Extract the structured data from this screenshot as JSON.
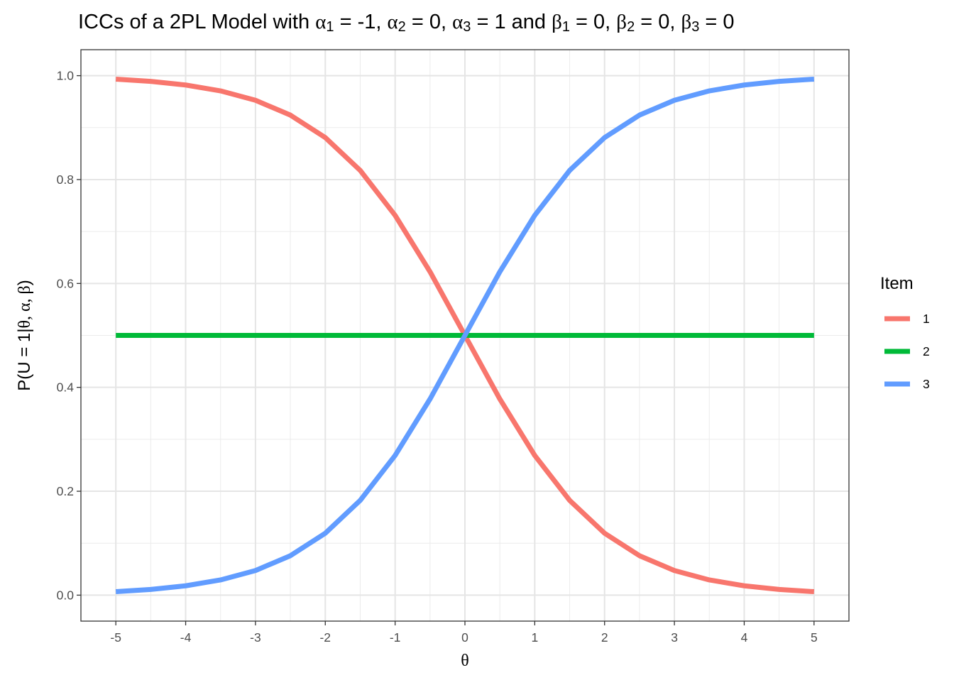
{
  "chart_data": {
    "type": "line",
    "title_parts": [
      {
        "t": "ICCs of a 2PL Model with ",
        "k": "n"
      },
      {
        "t": "α",
        "k": "g"
      },
      {
        "t": "1",
        "k": "s"
      },
      {
        "t": " = -1, ",
        "k": "n"
      },
      {
        "t": "α",
        "k": "g"
      },
      {
        "t": "2",
        "k": "s"
      },
      {
        "t": " = 0, ",
        "k": "n"
      },
      {
        "t": "α",
        "k": "g"
      },
      {
        "t": "3",
        "k": "s"
      },
      {
        "t": " = 1 and ",
        "k": "n"
      },
      {
        "t": "β",
        "k": "g"
      },
      {
        "t": "1",
        "k": "s"
      },
      {
        "t": " = 0, ",
        "k": "n"
      },
      {
        "t": "β",
        "k": "g"
      },
      {
        "t": "2",
        "k": "s"
      },
      {
        "t": " = 0, ",
        "k": "n"
      },
      {
        "t": "β",
        "k": "g"
      },
      {
        "t": "3",
        "k": "s"
      },
      {
        "t": " = 0",
        "k": "n"
      }
    ],
    "xlabel": "θ",
    "ylabel_parts": [
      {
        "t": "P(U = 1",
        "k": "n"
      },
      {
        "t": "|",
        "k": "n"
      },
      {
        "t": "θ, α, β",
        "k": "g"
      },
      {
        "t": ")",
        "k": "n"
      }
    ],
    "xlim": [
      -5.5,
      5.5
    ],
    "ylim": [
      -0.05,
      1.05
    ],
    "x_ticks": [
      -5,
      -4,
      -3,
      -2,
      -1,
      0,
      1,
      2,
      3,
      4,
      5
    ],
    "x_tick_labels": [
      "-5",
      "-4",
      "-3",
      "-2",
      "-1",
      "0",
      "1",
      "2",
      "3",
      "4",
      "5"
    ],
    "y_ticks": [
      0.0,
      0.2,
      0.4,
      0.6,
      0.8,
      1.0
    ],
    "y_tick_labels": [
      "0.0",
      "0.2",
      "0.4",
      "0.6",
      "0.8",
      "1.0"
    ],
    "grid": true,
    "legend": {
      "title": "Item",
      "position": "right"
    },
    "x": [
      -5,
      -4.5,
      -4,
      -3.5,
      -3,
      -2.5,
      -2,
      -1.5,
      -1,
      -0.5,
      0,
      0.5,
      1,
      1.5,
      2,
      2.5,
      3,
      3.5,
      4,
      4.5,
      5
    ],
    "series": [
      {
        "name": "1",
        "color": "#F8766D",
        "values": [
          0.9933,
          0.989,
          0.982,
          0.9707,
          0.9526,
          0.9241,
          0.8808,
          0.8176,
          0.7311,
          0.6225,
          0.5,
          0.3775,
          0.2689,
          0.1824,
          0.1192,
          0.0759,
          0.0474,
          0.0293,
          0.018,
          0.011,
          0.0067
        ]
      },
      {
        "name": "2",
        "color": "#00BA38",
        "values": [
          0.5,
          0.5,
          0.5,
          0.5,
          0.5,
          0.5,
          0.5,
          0.5,
          0.5,
          0.5,
          0.5,
          0.5,
          0.5,
          0.5,
          0.5,
          0.5,
          0.5,
          0.5,
          0.5,
          0.5,
          0.5
        ]
      },
      {
        "name": "3",
        "color": "#619CFF",
        "values": [
          0.0067,
          0.011,
          0.018,
          0.0293,
          0.0474,
          0.0759,
          0.1192,
          0.1824,
          0.2689,
          0.3775,
          0.5,
          0.6225,
          0.7311,
          0.8176,
          0.8808,
          0.9241,
          0.9526,
          0.9707,
          0.982,
          0.989,
          0.9933
        ]
      }
    ]
  }
}
